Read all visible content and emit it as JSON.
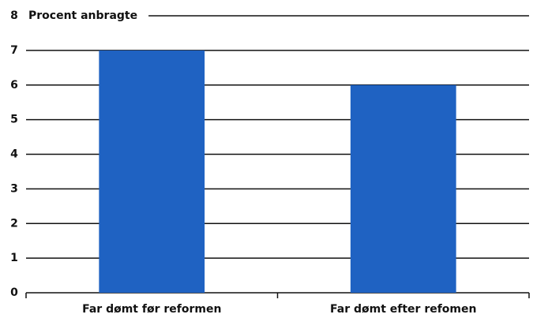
{
  "chart_data": {
    "type": "bar",
    "y_label": "Procent anbragte",
    "categories": [
      "Far dømt før reformen",
      "Far dømt efter refomen"
    ],
    "values": [
      7,
      6
    ],
    "color": "#1f62c2",
    "ylim": [
      0,
      8
    ],
    "yticks": [
      0,
      1,
      2,
      3,
      4,
      5,
      6,
      7,
      8
    ],
    "grid": true
  }
}
